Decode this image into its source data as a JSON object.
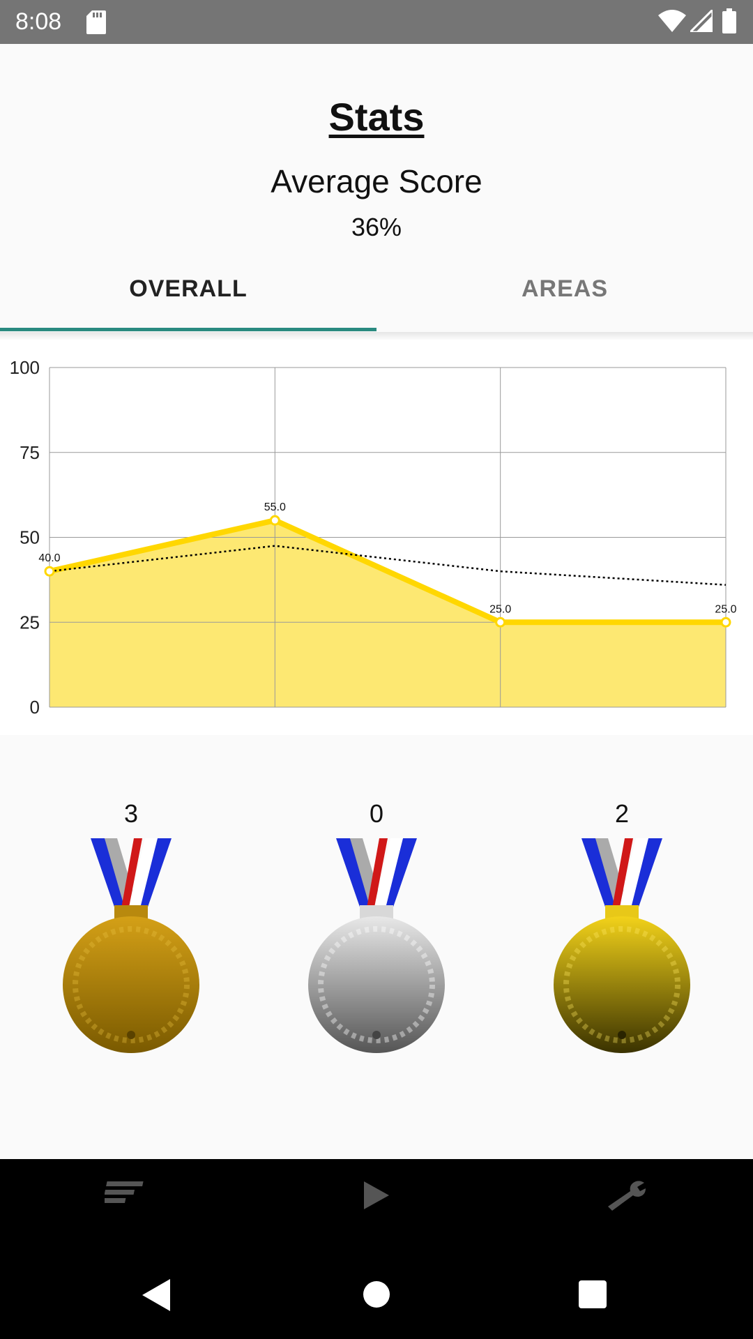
{
  "status_bar": {
    "time": "8:08",
    "icons": [
      "sd-card-icon",
      "wifi-icon",
      "cell-signal-icon",
      "battery-icon"
    ]
  },
  "header": {
    "title": "Stats",
    "average_label": "Average Score",
    "average_value": "36%"
  },
  "tabs": [
    {
      "label": "OVERALL",
      "selected": true
    },
    {
      "label": "AREAS",
      "selected": false
    }
  ],
  "chart_data": {
    "type": "area",
    "x": [
      1,
      2,
      3,
      4
    ],
    "series": [
      {
        "values": [
          40.0,
          55.0,
          25.0,
          25.0
        ],
        "labels": [
          "40.0",
          "55.0",
          "25.0",
          "25.0"
        ],
        "color": "#FFD700",
        "fill": "#FDE872"
      },
      {
        "values": [
          40.0,
          47.5,
          40.0,
          36.0
        ],
        "style": "dotted",
        "color": "#000000"
      }
    ],
    "ylim": [
      0,
      100
    ],
    "yticks": [
      "0",
      "25",
      "50",
      "75",
      "100"
    ],
    "grid": true
  },
  "medals": [
    {
      "count": "3",
      "icon": "bronze-medal-icon",
      "colors": [
        "#d4a017",
        "#7a5a00"
      ]
    },
    {
      "count": "0",
      "icon": "silver-medal-icon",
      "colors": [
        "#e8e8e8",
        "#555555"
      ]
    },
    {
      "count": "2",
      "icon": "gold-medal-icon",
      "colors": [
        "#f2d21a",
        "#3a3200"
      ]
    }
  ],
  "bottom_nav": {
    "items": [
      "stats-list-icon",
      "play-icon",
      "wrench-icon"
    ]
  },
  "system_nav": [
    "back-icon",
    "home-icon",
    "recents-icon"
  ]
}
